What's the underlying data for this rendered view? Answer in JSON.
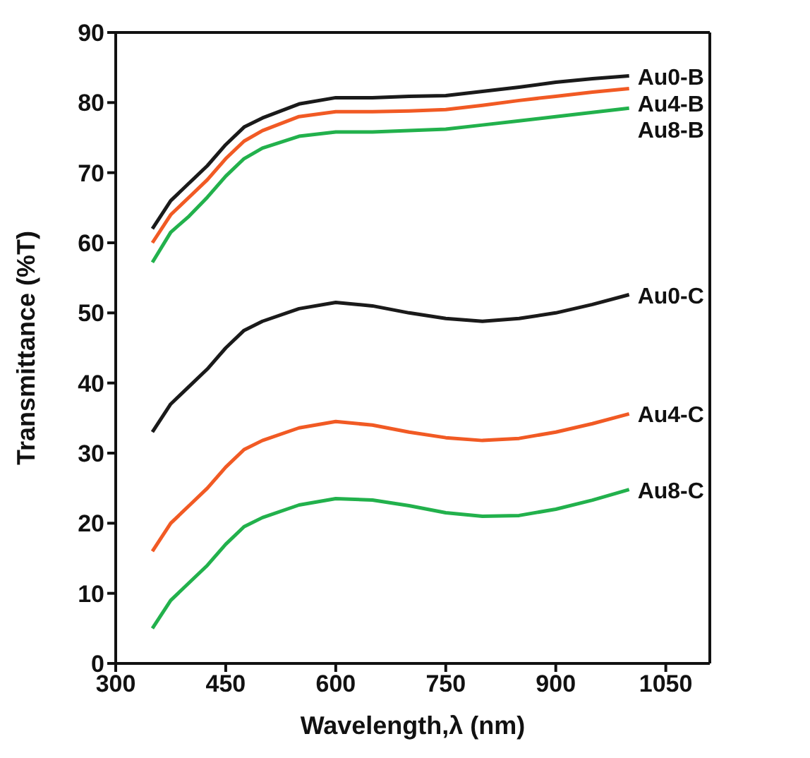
{
  "chart_data": {
    "type": "line",
    "xlabel": "Wavelength,λ (nm)",
    "ylabel": "Transmittance (%T)",
    "x": [
      350,
      375,
      400,
      425,
      450,
      475,
      500,
      550,
      600,
      650,
      700,
      750,
      800,
      850,
      900,
      950,
      1000
    ],
    "xlim": [
      300,
      1110
    ],
    "xticks": [
      300,
      450,
      600,
      750,
      900,
      1050
    ],
    "ylim": [
      0,
      90
    ],
    "yticks": [
      0,
      10,
      20,
      30,
      40,
      50,
      60,
      70,
      80,
      90
    ],
    "grid": false,
    "legend": false,
    "marker": "none",
    "line_style": "solid",
    "series": [
      {
        "name": "Au0-B",
        "color": "#1a1a1a",
        "values": [
          62,
          66,
          68.5,
          71,
          74,
          76.5,
          77.8,
          79.8,
          80.7,
          80.7,
          80.9,
          81,
          81.6,
          82.2,
          82.9,
          83.4,
          83.8
        ]
      },
      {
        "name": "Au4-B",
        "color": "#f15a24",
        "values": [
          60,
          64,
          66.5,
          69,
          72,
          74.5,
          76,
          78,
          78.7,
          78.7,
          78.8,
          79,
          79.6,
          80.3,
          80.9,
          81.5,
          82
        ]
      },
      {
        "name": "Au8-B",
        "color": "#22b14c",
        "values": [
          57.2,
          61.5,
          63.8,
          66.5,
          69.5,
          72,
          73.5,
          75.2,
          75.8,
          75.8,
          76,
          76.2,
          76.8,
          77.4,
          78,
          78.6,
          79.2
        ]
      },
      {
        "name": "Au0-C",
        "color": "#1a1a1a",
        "values": [
          33,
          37,
          39.5,
          42,
          45,
          47.5,
          48.8,
          50.6,
          51.5,
          51,
          50,
          49.2,
          48.8,
          49.2,
          50,
          51.2,
          52.6
        ]
      },
      {
        "name": "Au4-C",
        "color": "#f15a24",
        "values": [
          16,
          20,
          22.5,
          25,
          28,
          30.5,
          31.8,
          33.6,
          34.5,
          34,
          33,
          32.2,
          31.8,
          32.1,
          33,
          34.2,
          35.6
        ]
      },
      {
        "name": "Au8-C",
        "color": "#22b14c",
        "values": [
          5,
          9,
          11.5,
          14,
          17,
          19.5,
          20.8,
          22.6,
          23.5,
          23.3,
          22.5,
          21.5,
          21,
          21.1,
          22,
          23.3,
          24.8
        ]
      }
    ]
  }
}
